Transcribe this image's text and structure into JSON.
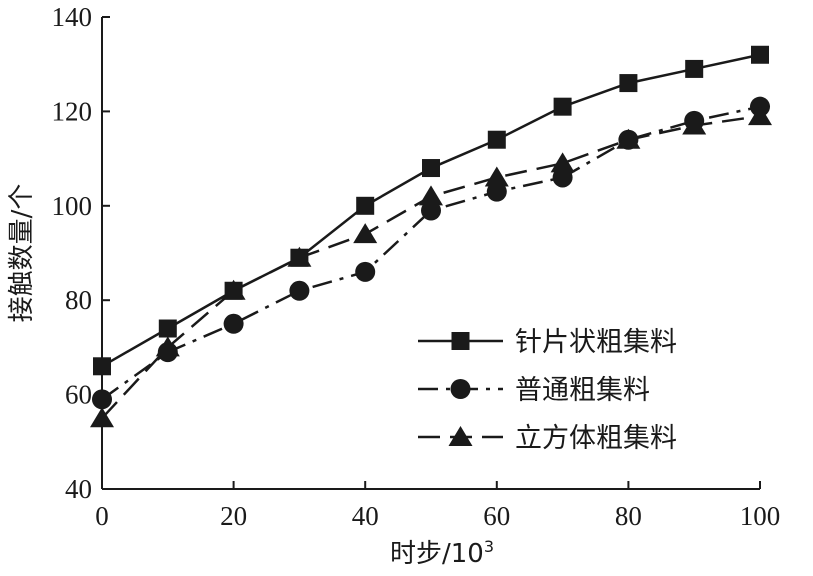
{
  "chart_data": {
    "type": "line",
    "title": "",
    "xlabel": "时步/10",
    "xlabel_sup": "3",
    "ylabel": "接触数量/个",
    "xlim": [
      0,
      100
    ],
    "ylim": [
      40,
      140
    ],
    "xticks": [
      0,
      20,
      40,
      60,
      80,
      100
    ],
    "yticks": [
      40,
      60,
      80,
      100,
      120,
      140
    ],
    "x": [
      0,
      10,
      20,
      30,
      40,
      50,
      60,
      70,
      80,
      90,
      100
    ],
    "grid": false,
    "legend_position": "bottom-right",
    "series": [
      {
        "name": "针片状粗集料",
        "marker": "square",
        "line_style": "solid",
        "values": [
          66,
          74,
          82,
          89,
          100,
          108,
          114,
          121,
          126,
          129,
          132
        ]
      },
      {
        "name": "普通粗集料",
        "marker": "circle",
        "line_style": "dash-dot",
        "values": [
          59,
          69,
          75,
          82,
          86,
          99,
          103,
          106,
          114,
          118,
          121
        ]
      },
      {
        "name": "立方体粗集料",
        "marker": "triangle",
        "line_style": "dashed",
        "values": [
          55,
          70,
          82,
          89,
          94,
          102,
          106,
          109,
          114,
          117,
          119
        ]
      }
    ]
  }
}
